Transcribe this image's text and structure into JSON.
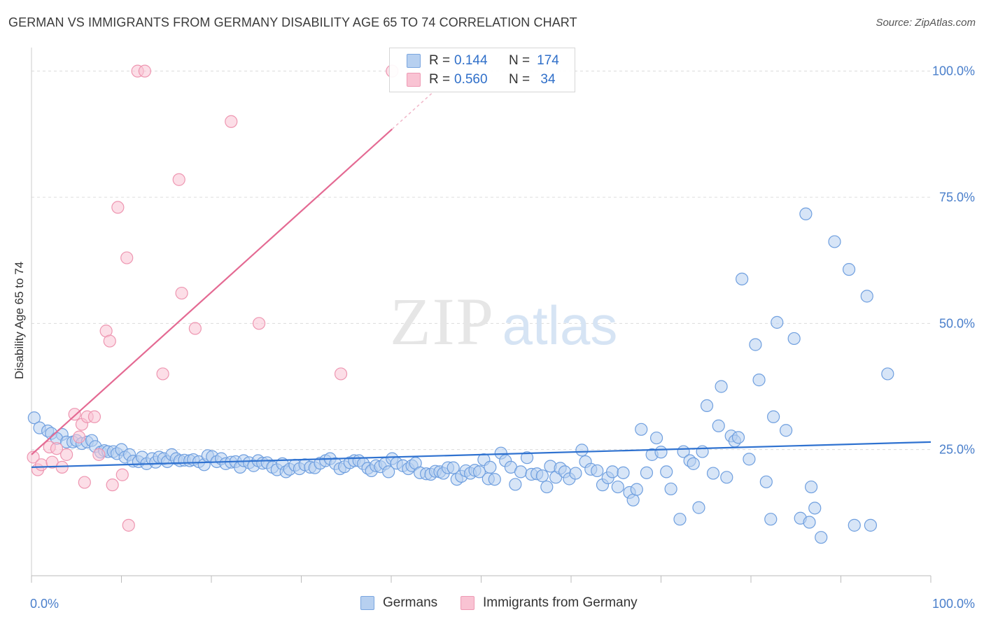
{
  "title": "GERMAN VS IMMIGRANTS FROM GERMANY DISABILITY AGE 65 TO 74 CORRELATION CHART",
  "source": "Source: ZipAtlas.com",
  "watermark": {
    "zip": "ZIP",
    "atlas": "atlas"
  },
  "legend_top": {
    "rows": [
      {
        "r_label": "R =",
        "r_value": "0.144",
        "n_label": "N =",
        "n_value": "174",
        "fill": "#b7d0f0",
        "stroke": "#7aa6e0"
      },
      {
        "r_label": "R =",
        "r_value": "0.560",
        "n_label": "N =",
        "n_value": "34",
        "fill": "#f9c3d3",
        "stroke": "#ee9ab4"
      }
    ]
  },
  "legend_bottom": [
    {
      "label": "Germans",
      "fill": "#b7d0f0",
      "stroke": "#7aa6e0"
    },
    {
      "label": "Immigrants from Germany",
      "fill": "#f9c3d3",
      "stroke": "#ee9ab4"
    }
  ],
  "chart_data": {
    "type": "scatter",
    "title": "GERMAN VS IMMIGRANTS FROM GERMANY DISABILITY AGE 65 TO 74 CORRELATION CHART",
    "xlabel": "",
    "ylabel": "Disability Age 65 to 74",
    "x_tick_labels": [
      "0.0%",
      "100.0%"
    ],
    "y_tick_labels": [
      "25.0%",
      "50.0%",
      "75.0%",
      "100.0%"
    ],
    "y_ticks": [
      25,
      50,
      75,
      100
    ],
    "xlim": [
      0,
      100
    ],
    "ylim": [
      0,
      103
    ],
    "grid": true,
    "legend_placement": "top-center",
    "colors": {
      "Germans": "#5b93dc",
      "Immigrants": "#ec83a4",
      "GermansLine": "#2f72d0",
      "ImmigrantsLine": "#e46a93",
      "axis_text": "#4a7fcb"
    },
    "series": [
      {
        "name": "Germans",
        "trend": {
          "x": [
            0,
            100
          ],
          "y": [
            21.5,
            26.5
          ]
        },
        "points": [
          [
            0.3,
            31.3
          ],
          [
            0.9,
            29.3
          ],
          [
            1.8,
            28.7
          ],
          [
            2.2,
            28.2
          ],
          [
            3.4,
            28
          ],
          [
            2.8,
            27.2
          ],
          [
            3.9,
            26.5
          ],
          [
            4.6,
            26.5
          ],
          [
            5,
            26.8
          ],
          [
            5.6,
            26.2
          ],
          [
            6.2,
            26.5
          ],
          [
            6.7,
            26.8
          ],
          [
            7.1,
            25.6
          ],
          [
            7.7,
            24.5
          ],
          [
            8.1,
            24.8
          ],
          [
            8.5,
            24.6
          ],
          [
            9.1,
            24.6
          ],
          [
            9.5,
            24.2
          ],
          [
            10,
            25
          ],
          [
            10.4,
            23.5
          ],
          [
            10.9,
            24
          ],
          [
            11.3,
            22.7
          ],
          [
            11.9,
            22.6
          ],
          [
            12.3,
            23.5
          ],
          [
            12.8,
            22.2
          ],
          [
            13.4,
            23.2
          ],
          [
            13.8,
            22.5
          ],
          [
            14.2,
            23.5
          ],
          [
            14.7,
            23.2
          ],
          [
            15.1,
            22.6
          ],
          [
            15.6,
            24
          ],
          [
            16.1,
            23.2
          ],
          [
            16.5,
            22.8
          ],
          [
            17,
            22.9
          ],
          [
            17.6,
            22.8
          ],
          [
            18,
            23
          ],
          [
            18.6,
            22.6
          ],
          [
            19.2,
            22
          ],
          [
            19.6,
            23.8
          ],
          [
            20.1,
            23.6
          ],
          [
            20.6,
            22.6
          ],
          [
            21.1,
            23.2
          ],
          [
            21.6,
            22.2
          ],
          [
            22.2,
            22.5
          ],
          [
            22.7,
            22.6
          ],
          [
            23.2,
            21.5
          ],
          [
            23.6,
            22.8
          ],
          [
            24.2,
            22.4
          ],
          [
            24.7,
            21.8
          ],
          [
            25.2,
            22.8
          ],
          [
            25.7,
            22.3
          ],
          [
            26.2,
            22.4
          ],
          [
            26.8,
            21.5
          ],
          [
            27.3,
            21
          ],
          [
            27.9,
            22.2
          ],
          [
            28.3,
            20.6
          ],
          [
            28.7,
            21.1
          ],
          [
            29.3,
            21.9
          ],
          [
            29.8,
            21.2
          ],
          [
            30.4,
            22
          ],
          [
            31,
            21.5
          ],
          [
            31.5,
            21.4
          ],
          [
            32.1,
            22.3
          ],
          [
            32.7,
            22.8
          ],
          [
            33.2,
            23.2
          ],
          [
            33.8,
            22.2
          ],
          [
            34.3,
            21.2
          ],
          [
            34.8,
            21.6
          ],
          [
            35.4,
            22.4
          ],
          [
            35.9,
            22.8
          ],
          [
            36.4,
            22.8
          ],
          [
            36.9,
            22.2
          ],
          [
            37.4,
            21.3
          ],
          [
            37.8,
            20.8
          ],
          [
            38.3,
            21.8
          ],
          [
            38.8,
            21.6
          ],
          [
            39.3,
            22.2
          ],
          [
            39.7,
            20.6
          ],
          [
            40.1,
            23.2
          ],
          [
            40.6,
            22.3
          ],
          [
            41.3,
            21.8
          ],
          [
            41.9,
            21.2
          ],
          [
            42.3,
            21.8
          ],
          [
            42.7,
            22.3
          ],
          [
            43.2,
            20.4
          ],
          [
            43.9,
            20.2
          ],
          [
            44.4,
            20.1
          ],
          [
            44.9,
            20.7
          ],
          [
            45.4,
            20.6
          ],
          [
            45.8,
            20.3
          ],
          [
            46.3,
            21.4
          ],
          [
            46.9,
            21.4
          ],
          [
            47.3,
            19.1
          ],
          [
            47.8,
            19.7
          ],
          [
            48.3,
            20.8
          ],
          [
            48.8,
            20.3
          ],
          [
            49.3,
            20.9
          ],
          [
            49.8,
            20.6
          ],
          [
            50.3,
            23
          ],
          [
            50.8,
            19.2
          ],
          [
            51,
            21.5
          ],
          [
            51.5,
            19.1
          ],
          [
            52.2,
            24.3
          ],
          [
            52.7,
            22.8
          ],
          [
            53.3,
            21.5
          ],
          [
            53.8,
            18.1
          ],
          [
            54.4,
            20.6
          ],
          [
            55.1,
            23.4
          ],
          [
            55.6,
            20.1
          ],
          [
            56.2,
            20.2
          ],
          [
            56.8,
            19.8
          ],
          [
            57.3,
            17.6
          ],
          [
            57.7,
            21.7
          ],
          [
            58.3,
            19.5
          ],
          [
            58.8,
            21.3
          ],
          [
            59.3,
            20.6
          ],
          [
            59.8,
            19.2
          ],
          [
            60.5,
            20.3
          ],
          [
            61.2,
            24.9
          ],
          [
            61.6,
            22.6
          ],
          [
            62.2,
            21.1
          ],
          [
            62.9,
            20.8
          ],
          [
            63.5,
            18
          ],
          [
            64.1,
            19.4
          ],
          [
            64.6,
            20.6
          ],
          [
            65.2,
            17.6
          ],
          [
            65.8,
            20.4
          ],
          [
            66.5,
            16.5
          ],
          [
            66.9,
            15
          ],
          [
            67.3,
            17.1
          ],
          [
            67.8,
            29
          ],
          [
            68.4,
            20.4
          ],
          [
            69,
            24
          ],
          [
            69.5,
            27.3
          ],
          [
            70,
            24.5
          ],
          [
            70.6,
            20.6
          ],
          [
            71.1,
            17.2
          ],
          [
            72.1,
            11.2
          ],
          [
            72.5,
            24.6
          ],
          [
            73.2,
            22.8
          ],
          [
            73.6,
            22.2
          ],
          [
            74.2,
            13.5
          ],
          [
            74.6,
            24.6
          ],
          [
            75.1,
            33.7
          ],
          [
            75.8,
            20.3
          ],
          [
            76.4,
            29.7
          ],
          [
            76.7,
            37.5
          ],
          [
            77.3,
            19.5
          ],
          [
            77.8,
            27.7
          ],
          [
            78.2,
            26.7
          ],
          [
            78.6,
            27.4
          ],
          [
            79,
            58.8
          ],
          [
            79.8,
            23.1
          ],
          [
            80.5,
            45.8
          ],
          [
            80.9,
            38.8
          ],
          [
            81.7,
            18.6
          ],
          [
            82.2,
            11.2
          ],
          [
            82.5,
            31.5
          ],
          [
            82.9,
            50.2
          ],
          [
            83.9,
            28.8
          ],
          [
            84.8,
            47
          ],
          [
            85.5,
            11.4
          ],
          [
            86.1,
            71.7
          ],
          [
            86.5,
            10.6
          ],
          [
            86.7,
            17.6
          ],
          [
            87.1,
            13.4
          ],
          [
            87.8,
            7.6
          ],
          [
            89.3,
            66.2
          ],
          [
            90.9,
            60.7
          ],
          [
            91.5,
            10
          ],
          [
            92.9,
            55.4
          ],
          [
            93.3,
            10
          ],
          [
            95.2,
            40
          ]
        ]
      },
      {
        "name": "Immigrants from Germany",
        "trend": {
          "x": [
            0,
            40.1
          ],
          "y": [
            24,
            88.5
          ]
        },
        "points": [
          [
            0.2,
            23.5
          ],
          [
            0.7,
            21
          ],
          [
            1.1,
            22
          ],
          [
            2,
            25.5
          ],
          [
            2.3,
            22.5
          ],
          [
            2.8,
            25.2
          ],
          [
            3.4,
            21.5
          ],
          [
            3.9,
            24
          ],
          [
            4.8,
            32
          ],
          [
            5.3,
            27.5
          ],
          [
            5.6,
            30
          ],
          [
            5.9,
            18.5
          ],
          [
            6.2,
            31.5
          ],
          [
            7,
            31.5
          ],
          [
            7.5,
            24
          ],
          [
            8.3,
            48.5
          ],
          [
            8.7,
            46.5
          ],
          [
            9,
            18
          ],
          [
            9.6,
            73
          ],
          [
            10.1,
            20
          ],
          [
            10.6,
            63
          ],
          [
            10.8,
            10
          ],
          [
            11.8,
            100
          ],
          [
            12.6,
            100
          ],
          [
            14.6,
            40
          ],
          [
            16.4,
            78.5
          ],
          [
            16.7,
            56
          ],
          [
            18.2,
            49
          ],
          [
            22.2,
            90
          ],
          [
            25.3,
            50
          ],
          [
            34.4,
            40
          ],
          [
            40.1,
            100
          ]
        ]
      }
    ]
  }
}
